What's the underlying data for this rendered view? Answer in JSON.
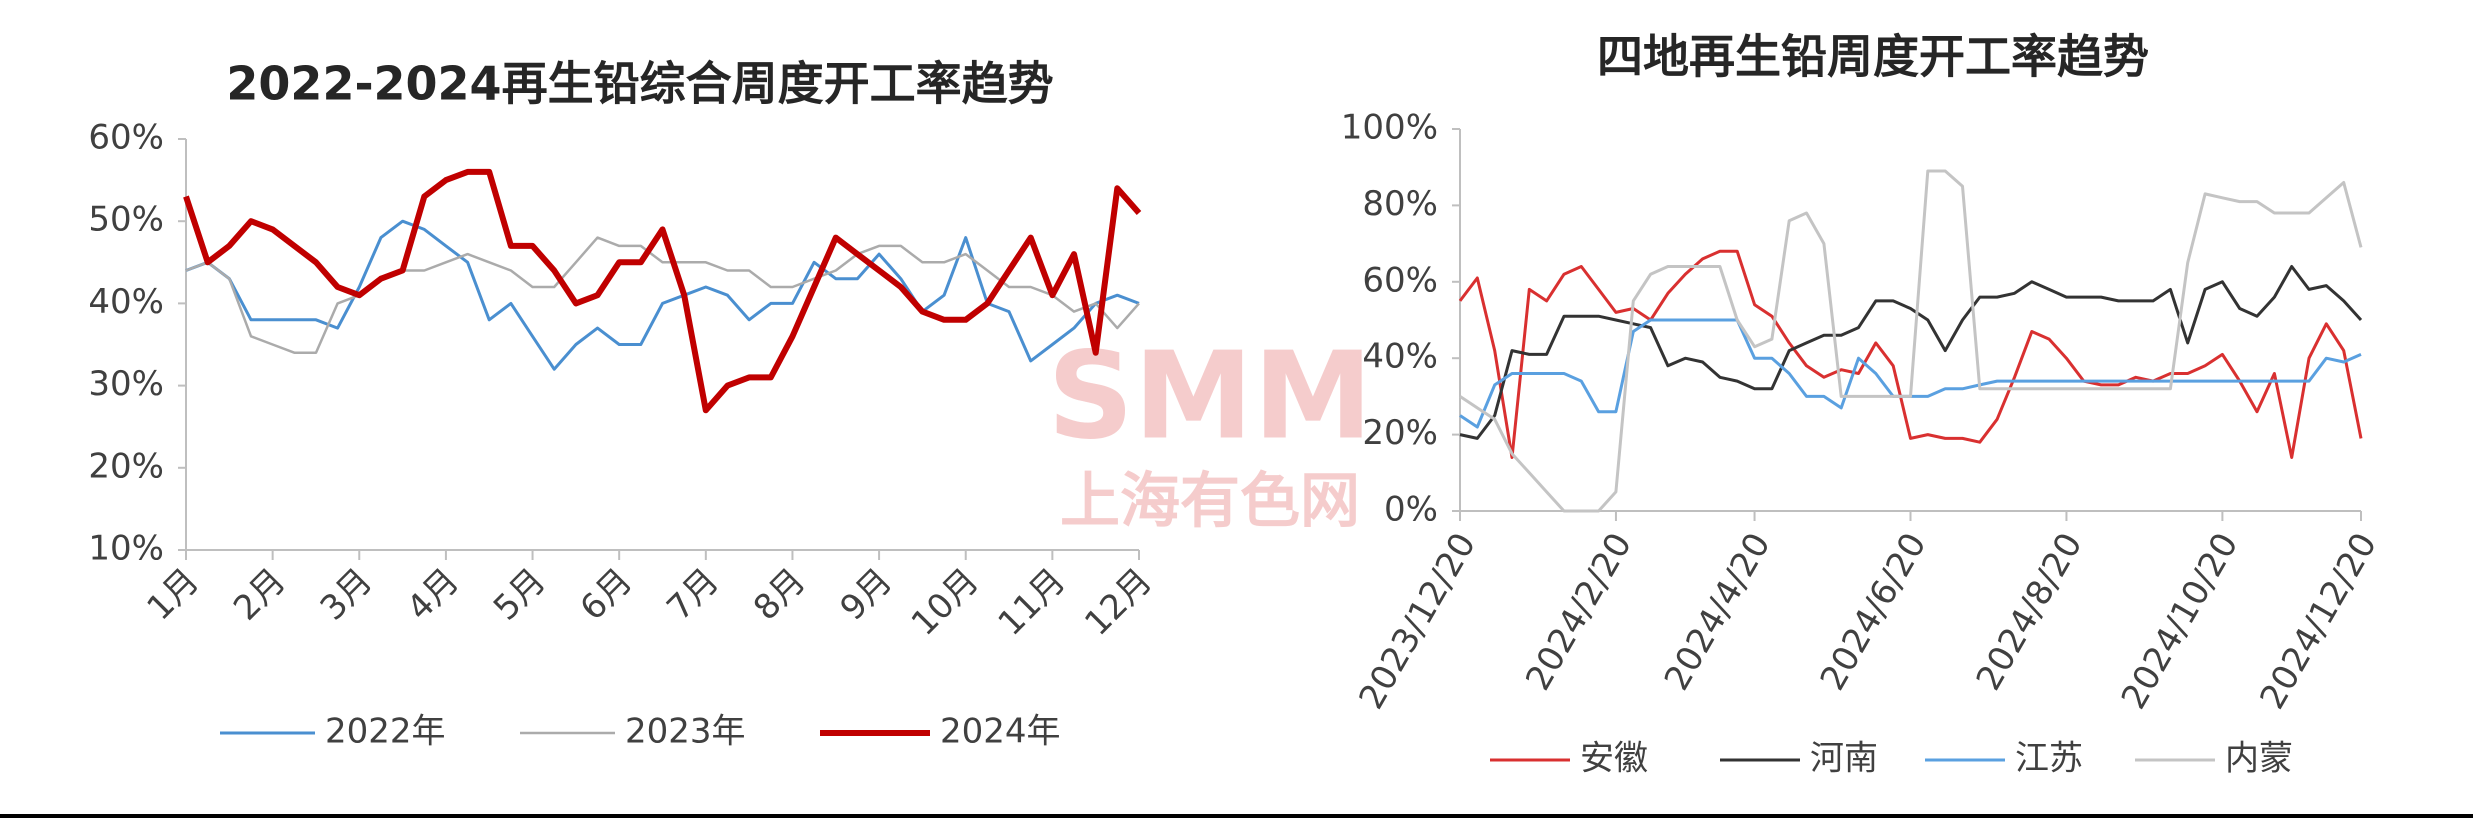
{
  "chart_data": [
    {
      "type": "line",
      "title": "2022-2024再生铅综合周度开工率趋势",
      "categories": [
        "1月",
        null,
        null,
        null,
        "2月",
        null,
        null,
        null,
        "3月",
        null,
        null,
        null,
        "4月",
        null,
        null,
        null,
        "5月",
        null,
        null,
        null,
        "6月",
        null,
        null,
        null,
        "7月",
        null,
        null,
        null,
        "8月",
        null,
        null,
        null,
        "9月",
        null,
        null,
        null,
        "10月",
        null,
        null,
        null,
        "11月",
        null,
        null,
        null,
        "12月"
      ],
      "series": [
        {
          "name": "2022年",
          "color": "#4a8fd0",
          "values": [
            44,
            45,
            43,
            38,
            38,
            38,
            38,
            37,
            42,
            48,
            50,
            49,
            47,
            45,
            38,
            40,
            36,
            32,
            35,
            37,
            35,
            35,
            40,
            41,
            42,
            41,
            38,
            40,
            40,
            45,
            43,
            43,
            46,
            43,
            39,
            41,
            48,
            40,
            39,
            33,
            35,
            37,
            40,
            41,
            40
          ]
        },
        {
          "name": "2023年",
          "color": "#ababab",
          "values": [
            44,
            45,
            43,
            36,
            35,
            34,
            34,
            40,
            41,
            43,
            44,
            44,
            45,
            46,
            45,
            44,
            42,
            42,
            45,
            48,
            47,
            47,
            45,
            45,
            45,
            44,
            44,
            42,
            42,
            43,
            44,
            46,
            47,
            47,
            45,
            45,
            46,
            44,
            42,
            42,
            41,
            39,
            40,
            37,
            40
          ]
        },
        {
          "name": "2024年",
          "color": "#c00000",
          "values": [
            53,
            45,
            47,
            50,
            49,
            47,
            45,
            42,
            41,
            43,
            44,
            53,
            55,
            56,
            56,
            47,
            47,
            44,
            40,
            41,
            45,
            45,
            49,
            41,
            27,
            30,
            31,
            31,
            36,
            42,
            48,
            46,
            44,
            42,
            39,
            38,
            38,
            40,
            44,
            48,
            41,
            46,
            34,
            54,
            51
          ]
        }
      ],
      "ylim": [
        10,
        60
      ],
      "yticks": [
        {
          "value": 10,
          "label": "10%"
        },
        {
          "value": 20,
          "label": "20%"
        },
        {
          "value": 30,
          "label": "30%"
        },
        {
          "value": 40,
          "label": "40%"
        },
        {
          "value": 50,
          "label": "50%"
        },
        {
          "value": 60,
          "label": "60%"
        }
      ],
      "grid": false
    },
    {
      "type": "line",
      "title": "四地再生铅周度开工率趋势",
      "categories": [
        "2023/12/20",
        null,
        null,
        null,
        null,
        null,
        null,
        null,
        null,
        "2024/2/20",
        null,
        null,
        null,
        null,
        null,
        null,
        null,
        "2024/4/20",
        null,
        null,
        null,
        null,
        null,
        null,
        null,
        null,
        "2024/6/20",
        null,
        null,
        null,
        null,
        null,
        null,
        null,
        null,
        "2024/8/20",
        null,
        null,
        null,
        null,
        null,
        null,
        null,
        null,
        "2024/10/20",
        null,
        null,
        null,
        null,
        null,
        null,
        null,
        "2024/12/20"
      ],
      "series": [
        {
          "name": "安徽",
          "color": "#d93030",
          "values": [
            55,
            61,
            42,
            14,
            58,
            55,
            62,
            64,
            58,
            52,
            53,
            50,
            57,
            62,
            66,
            68,
            68,
            54,
            51,
            44,
            38,
            35,
            37,
            36,
            44,
            38,
            19,
            20,
            19,
            19,
            18,
            24,
            35,
            47,
            45,
            40,
            34,
            33,
            33,
            35,
            34,
            36,
            36,
            38,
            41,
            34,
            26,
            36,
            14,
            40,
            49,
            42,
            19
          ]
        },
        {
          "name": "河南",
          "color": "#333333",
          "values": [
            20,
            19,
            25,
            42,
            41,
            41,
            51,
            51,
            51,
            50,
            49,
            48,
            38,
            40,
            39,
            35,
            34,
            32,
            32,
            42,
            44,
            46,
            46,
            48,
            55,
            55,
            53,
            50,
            42,
            50,
            56,
            56,
            57,
            60,
            58,
            56,
            56,
            56,
            55,
            55,
            55,
            58,
            44,
            58,
            60,
            53,
            51,
            56,
            64,
            58,
            59,
            55,
            50
          ]
        },
        {
          "name": "江苏",
          "color": "#5aa0e0",
          "values": [
            25,
            22,
            33,
            36,
            36,
            36,
            36,
            34,
            26,
            26,
            47,
            50,
            50,
            50,
            50,
            50,
            50,
            40,
            40,
            36,
            30,
            30,
            27,
            40,
            36,
            30,
            30,
            30,
            32,
            32,
            33,
            34,
            34,
            34,
            34,
            34,
            34,
            34,
            34,
            34,
            34,
            34,
            34,
            34,
            34,
            34,
            34,
            34,
            34,
            34,
            40,
            39,
            41
          ]
        },
        {
          "name": "内蒙",
          "color": "#c4c4c4",
          "values": [
            30,
            27,
            24,
            15,
            10,
            5,
            0,
            0,
            0,
            5,
            55,
            62,
            64,
            64,
            64,
            64,
            50,
            43,
            45,
            76,
            78,
            70,
            30,
            30,
            30,
            30,
            30,
            89,
            89,
            85,
            32,
            32,
            32,
            32,
            32,
            32,
            32,
            32,
            32,
            32,
            32,
            32,
            65,
            83,
            82,
            81,
            81,
            78,
            78,
            78,
            82,
            86,
            69
          ]
        }
      ],
      "ylim": [
        0,
        100
      ],
      "yticks": [
        {
          "value": 0,
          "label": "0%"
        },
        {
          "value": 20,
          "label": "20%"
        },
        {
          "value": 40,
          "label": "40%"
        },
        {
          "value": 60,
          "label": "60%"
        },
        {
          "value": 80,
          "label": "80%"
        },
        {
          "value": 100,
          "label": "100%"
        }
      ],
      "grid": false
    }
  ],
  "watermark": {
    "logo": "SMM",
    "text": "上海有色网"
  }
}
